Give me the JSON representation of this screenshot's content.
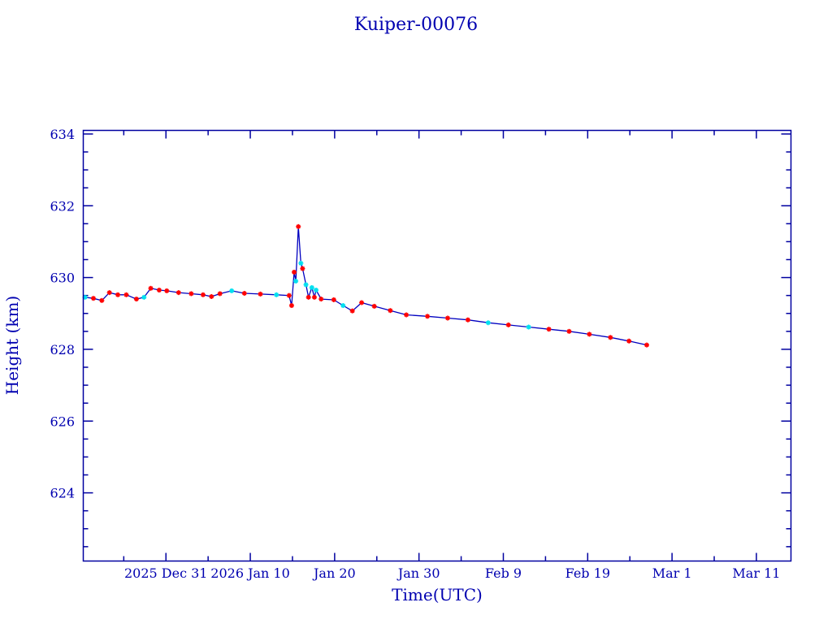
{
  "colors": {
    "axis": "#0000a0",
    "text": "#0000b0",
    "line": "#0000c0",
    "marker_red": "#ff0000",
    "marker_cyan": "#00e0f0"
  },
  "chart_data": {
    "type": "line",
    "title": "Kuiper-00076",
    "xlabel": "Time(UTC)",
    "ylabel": "Height (km)",
    "x_units": "days since 2025 Dec 31 UTC",
    "xlim": [
      -9.8,
      74.1
    ],
    "ylim": [
      622.1,
      634.1
    ],
    "x_major_step": 10,
    "x_minor_step": 5,
    "y_major_step": 2,
    "y_minor_step": 0.5,
    "grid": false,
    "x_ticks": [
      {
        "value": 0,
        "label": "2025 Dec 31"
      },
      {
        "value": 10,
        "label": "2026 Jan 10"
      },
      {
        "value": 20,
        "label": "Jan 20"
      },
      {
        "value": 30,
        "label": "Jan 30"
      },
      {
        "value": 40,
        "label": "Feb  9"
      },
      {
        "value": 50,
        "label": "Feb 19"
      },
      {
        "value": 60,
        "label": "Mar  1"
      },
      {
        "value": 70,
        "label": "Mar 11"
      }
    ],
    "y_ticks": [
      {
        "value": 624,
        "label": "624"
      },
      {
        "value": 626,
        "label": "626"
      },
      {
        "value": 628,
        "label": "628"
      },
      {
        "value": 630,
        "label": "630"
      },
      {
        "value": 632,
        "label": "632"
      },
      {
        "value": 634,
        "label": "634"
      }
    ],
    "series": [
      {
        "name": "Height",
        "points": [
          {
            "x": -9.6,
            "y": 629.45,
            "m": "cyan"
          },
          {
            "x": -8.6,
            "y": 629.42,
            "m": "red"
          },
          {
            "x": -7.6,
            "y": 629.36,
            "m": "red"
          },
          {
            "x": -6.7,
            "y": 629.58,
            "m": "red"
          },
          {
            "x": -5.7,
            "y": 629.52,
            "m": "red"
          },
          {
            "x": -4.7,
            "y": 629.52,
            "m": "red"
          },
          {
            "x": -3.5,
            "y": 629.4,
            "m": "red"
          },
          {
            "x": -2.6,
            "y": 629.45,
            "m": "cyan"
          },
          {
            "x": -1.8,
            "y": 629.7,
            "m": "red"
          },
          {
            "x": -0.8,
            "y": 629.65,
            "m": "red"
          },
          {
            "x": 0.1,
            "y": 629.63,
            "m": "red"
          },
          {
            "x": 1.5,
            "y": 629.58,
            "m": "red"
          },
          {
            "x": 3.0,
            "y": 629.55,
            "m": "red"
          },
          {
            "x": 4.4,
            "y": 629.52,
            "m": "red"
          },
          {
            "x": 5.4,
            "y": 629.47,
            "m": "red"
          },
          {
            "x": 6.4,
            "y": 629.55,
            "m": "red"
          },
          {
            "x": 7.8,
            "y": 629.63,
            "m": "cyan"
          },
          {
            "x": 9.3,
            "y": 629.56,
            "m": "red"
          },
          {
            "x": 11.2,
            "y": 629.54,
            "m": "red"
          },
          {
            "x": 13.1,
            "y": 629.52,
            "m": "cyan"
          },
          {
            "x": 14.6,
            "y": 629.5,
            "m": "red"
          },
          {
            "x": 14.9,
            "y": 629.22,
            "m": "red"
          },
          {
            "x": 15.2,
            "y": 630.15,
            "m": "red"
          },
          {
            "x": 15.4,
            "y": 629.9,
            "m": "cyan"
          },
          {
            "x": 15.7,
            "y": 631.42,
            "m": "red"
          },
          {
            "x": 16.0,
            "y": 630.4,
            "m": "cyan"
          },
          {
            "x": 16.2,
            "y": 630.25,
            "m": "red"
          },
          {
            "x": 16.6,
            "y": 629.8,
            "m": "cyan"
          },
          {
            "x": 16.9,
            "y": 629.45,
            "m": "red"
          },
          {
            "x": 17.3,
            "y": 629.72,
            "m": "cyan"
          },
          {
            "x": 17.6,
            "y": 629.45,
            "m": "red"
          },
          {
            "x": 17.8,
            "y": 629.65,
            "m": "cyan"
          },
          {
            "x": 18.4,
            "y": 629.4,
            "m": "red"
          },
          {
            "x": 19.9,
            "y": 629.38,
            "m": "red"
          },
          {
            "x": 21.0,
            "y": 629.22,
            "m": "cyan"
          },
          {
            "x": 22.1,
            "y": 629.07,
            "m": "red"
          },
          {
            "x": 23.2,
            "y": 629.3,
            "m": "red"
          },
          {
            "x": 24.7,
            "y": 629.2,
            "m": "red"
          },
          {
            "x": 26.6,
            "y": 629.08,
            "m": "red"
          },
          {
            "x": 28.5,
            "y": 628.96,
            "m": "red"
          },
          {
            "x": 31.0,
            "y": 628.92,
            "m": "red"
          },
          {
            "x": 33.4,
            "y": 628.87,
            "m": "red"
          },
          {
            "x": 35.8,
            "y": 628.82,
            "m": "red"
          },
          {
            "x": 38.2,
            "y": 628.74,
            "m": "cyan"
          },
          {
            "x": 40.6,
            "y": 628.68,
            "m": "red"
          },
          {
            "x": 43.0,
            "y": 628.62,
            "m": "cyan"
          },
          {
            "x": 45.4,
            "y": 628.56,
            "m": "red"
          },
          {
            "x": 47.8,
            "y": 628.5,
            "m": "red"
          },
          {
            "x": 50.2,
            "y": 628.42,
            "m": "red"
          },
          {
            "x": 52.7,
            "y": 628.33,
            "m": "red"
          },
          {
            "x": 54.9,
            "y": 628.23,
            "m": "red"
          },
          {
            "x": 57.0,
            "y": 628.12,
            "m": "red"
          }
        ]
      }
    ]
  }
}
